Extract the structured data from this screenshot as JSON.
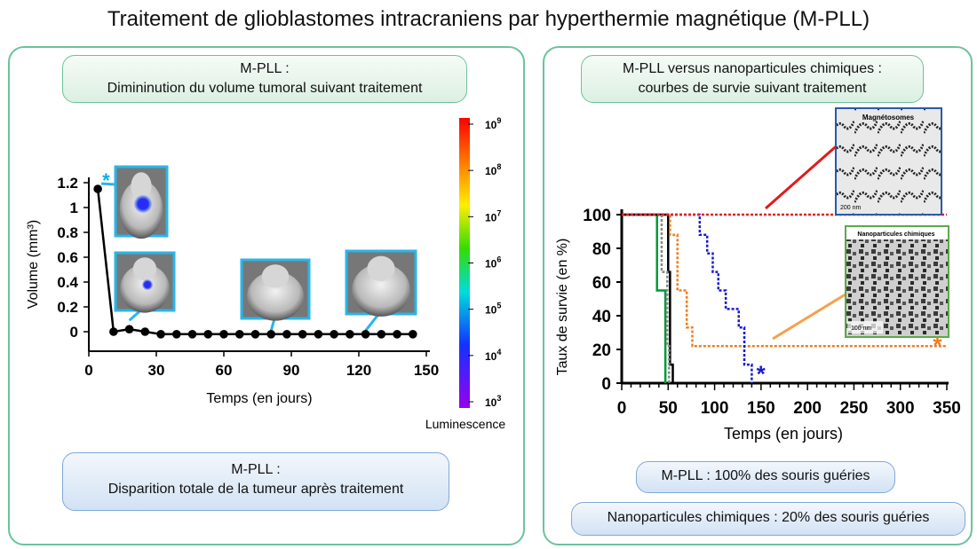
{
  "page": {
    "title": "Traitement de glioblastomes intracraniens par hyperthermie magnétique (M-PLL)"
  },
  "left_panel": {
    "header": {
      "line1": "M-PLL :",
      "line2": "Dimininution du volume tumoral suivant traitement"
    },
    "footer": {
      "line1": "M-PLL :",
      "line2": "Disparition totale de la tumeur après traitement"
    },
    "colorbar": {
      "label": "Luminescence",
      "ticks": [
        {
          "base": "10",
          "exp": "9"
        },
        {
          "base": "10",
          "exp": "8"
        },
        {
          "base": "10",
          "exp": "7"
        },
        {
          "base": "10",
          "exp": "6"
        },
        {
          "base": "10",
          "exp": "5"
        },
        {
          "base": "10",
          "exp": "4"
        },
        {
          "base": "10",
          "exp": "3"
        }
      ]
    }
  },
  "right_panel": {
    "header": {
      "line1": "M-PLL versus nanoparticules chimiques :",
      "line2": "courbes de survie suivant traitement"
    },
    "inset_magnetosomes": {
      "title": "Magnétosomes",
      "scale": "200 nm"
    },
    "inset_nanoparticles": {
      "title": "Nanoparticules chimiques",
      "scale": "100 nm"
    },
    "result1": "M-PLL : 100% des souris guéries",
    "result2": "Nanoparticules chimiques : 20% des souris guéries"
  },
  "chart_data": [
    {
      "type": "line",
      "title": "",
      "xlabel": "Temps (en jours)",
      "ylabel": "Volume (mm³)",
      "xlim": [
        0,
        150
      ],
      "ylim": [
        0,
        1.2
      ],
      "xticks": [
        0,
        30,
        60,
        90,
        120,
        150
      ],
      "yticks": [
        0,
        0.2,
        0.4,
        0.6,
        0.8,
        1,
        1.2
      ],
      "ytick_labels": [
        "0",
        "0.2",
        "0.4",
        "0.6",
        "0.8",
        "1",
        "1.2"
      ],
      "series": [
        {
          "color": "#000000",
          "x": [
            4,
            11,
            18,
            25,
            32,
            39,
            46,
            53,
            60,
            67,
            74,
            81,
            88,
            95,
            102,
            109,
            116,
            123,
            130,
            137,
            144
          ],
          "y": [
            1.15,
            0.0,
            0.02,
            0.0,
            -0.02,
            -0.02,
            -0.02,
            -0.02,
            -0.02,
            -0.02,
            -0.02,
            -0.02,
            -0.02,
            -0.02,
            -0.02,
            -0.02,
            -0.02,
            -0.02,
            -0.02,
            -0.02,
            -0.02
          ]
        }
      ],
      "annotations": [
        {
          "text": "*",
          "x": 4,
          "y": 1.15,
          "color": "#00aeef"
        }
      ]
    },
    {
      "type": "line",
      "title": "",
      "xlabel": "Temps (en jours)",
      "ylabel": "Taux de survie (en %)",
      "xlim": [
        0,
        350
      ],
      "ylim": [
        0,
        100
      ],
      "xticks": [
        0,
        50,
        100,
        150,
        200,
        250,
        300,
        350
      ],
      "yticks": [
        0,
        20,
        40,
        60,
        80,
        100
      ],
      "series": [
        {
          "color": "#009933",
          "dash": "",
          "points": [
            [
              0,
              100
            ],
            [
              38,
              100
            ],
            [
              38,
              55
            ],
            [
              47,
              55
            ],
            [
              47,
              0
            ]
          ]
        },
        {
          "color": "#000000",
          "dash": "",
          "points": [
            [
              0,
              100
            ],
            [
              50,
              100
            ],
            [
              50,
              66
            ],
            [
              52,
              66
            ],
            [
              52,
              11
            ],
            [
              55,
              11
            ],
            [
              55,
              0
            ]
          ]
        },
        {
          "color": "#888888",
          "dash": "3,2",
          "points": [
            [
              0,
              100
            ],
            [
              43,
              100
            ],
            [
              43,
              66
            ],
            [
              49,
              66
            ],
            [
              49,
              22
            ],
            [
              51,
              22
            ],
            [
              51,
              0
            ]
          ]
        },
        {
          "color": "#f07d1e",
          "dash": "3,2",
          "points": [
            [
              0,
              100
            ],
            [
              52,
              100
            ],
            [
              52,
              88
            ],
            [
              60,
              88
            ],
            [
              60,
              55
            ],
            [
              70,
              55
            ],
            [
              70,
              33
            ],
            [
              76,
              33
            ],
            [
              76,
              22
            ],
            [
              350,
              22
            ]
          ]
        },
        {
          "color": "#1a1acc",
          "dash": "3,2",
          "points": [
            [
              0,
              100
            ],
            [
              84,
              100
            ],
            [
              84,
              88
            ],
            [
              92,
              88
            ],
            [
              92,
              77
            ],
            [
              98,
              77
            ],
            [
              98,
              66
            ],
            [
              104,
              66
            ],
            [
              104,
              55
            ],
            [
              112,
              55
            ],
            [
              112,
              44
            ],
            [
              126,
              44
            ],
            [
              126,
              33
            ],
            [
              132,
              33
            ],
            [
              132,
              11
            ],
            [
              140,
              11
            ],
            [
              140,
              0
            ]
          ]
        },
        {
          "color": "#e62020",
          "dash": "3,2",
          "points": [
            [
              0,
              100
            ],
            [
              350,
              100
            ]
          ]
        }
      ],
      "annotations": [
        {
          "text": "*",
          "x": 145,
          "y": 5,
          "color": "#1a1acc"
        },
        {
          "text": "*",
          "x": 335,
          "y": 22,
          "color": "#f07d1e"
        }
      ]
    }
  ]
}
